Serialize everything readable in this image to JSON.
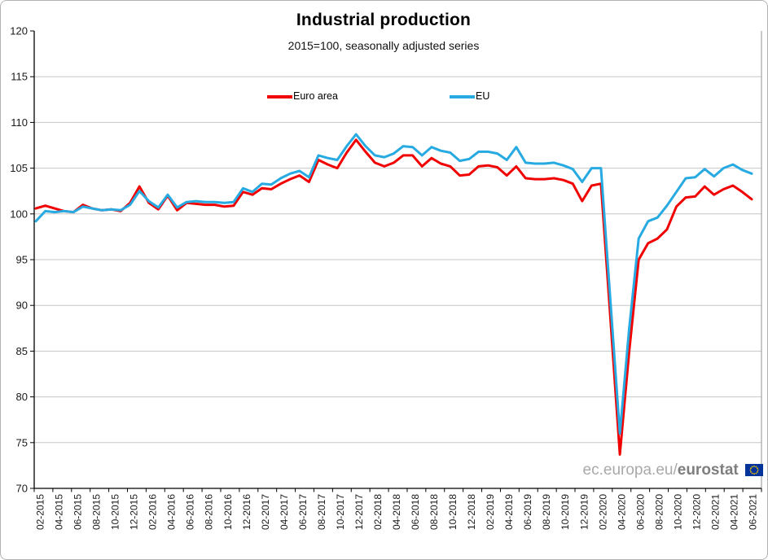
{
  "header": {
    "title": "Industrial production",
    "subtitle": "2015=100, seasonally adjusted series"
  },
  "legend": {
    "items": [
      {
        "key": "euro-area",
        "label": "Euro area",
        "color": "#f10000"
      },
      {
        "key": "eu",
        "label": "EU",
        "color": "#27aae1"
      }
    ]
  },
  "watermark": {
    "prefix": "ec.europa.eu/",
    "bold": "eurostat"
  },
  "colors": {
    "euro_area": "#f10000",
    "eu": "#27aae1",
    "gridline": "#c6c6c6",
    "plot_border": "#909090",
    "axis": "#000000",
    "tick_text": "#1a1a1a",
    "eu_flag_blue": "#003399",
    "eu_flag_stars": "#ffcc00"
  },
  "chart_data": {
    "type": "line",
    "title": "Industrial production",
    "subtitle": "2015=100, seasonally adjusted series",
    "xlabel": "",
    "ylabel": "",
    "ylim": [
      70,
      120
    ],
    "grid": "horizontal",
    "legend_position": "top",
    "y_ticks": [
      70,
      75,
      80,
      85,
      90,
      95,
      100,
      105,
      110,
      115,
      120
    ],
    "x_tick_labels": [
      "02-2015",
      "04-2015",
      "06-2015",
      "08-2015",
      "10-2015",
      "12-2015",
      "02-2016",
      "04-2016",
      "06-2016",
      "08-2016",
      "10-2016",
      "12-2016",
      "02-2017",
      "04-2017",
      "06-2017",
      "08-2017",
      "10-2017",
      "12-2017",
      "02-2018",
      "04-2018",
      "06-2018",
      "08-2018",
      "10-2018",
      "12-2018",
      "02-2019",
      "04-2019",
      "06-2019",
      "08-2019",
      "10-2019",
      "12-2019",
      "02-2020",
      "04-2020",
      "06-2020",
      "08-2020",
      "10-2020",
      "12-2020",
      "02-2021",
      "04-2021",
      "06-2021"
    ],
    "x": [
      "02-2015",
      "03-2015",
      "04-2015",
      "05-2015",
      "06-2015",
      "07-2015",
      "08-2015",
      "09-2015",
      "10-2015",
      "11-2015",
      "12-2015",
      "01-2016",
      "02-2016",
      "03-2016",
      "04-2016",
      "05-2016",
      "06-2016",
      "07-2016",
      "08-2016",
      "09-2016",
      "10-2016",
      "11-2016",
      "12-2016",
      "01-2017",
      "02-2017",
      "03-2017",
      "04-2017",
      "05-2017",
      "06-2017",
      "07-2017",
      "08-2017",
      "09-2017",
      "10-2017",
      "11-2017",
      "12-2017",
      "01-2018",
      "02-2018",
      "03-2018",
      "04-2018",
      "05-2018",
      "06-2018",
      "07-2018",
      "08-2018",
      "09-2018",
      "10-2018",
      "11-2018",
      "12-2018",
      "01-2019",
      "02-2019",
      "03-2019",
      "04-2019",
      "05-2019",
      "06-2019",
      "07-2019",
      "08-2019",
      "09-2019",
      "10-2019",
      "11-2019",
      "12-2019",
      "01-2020",
      "02-2020",
      "03-2020",
      "04-2020",
      "05-2020",
      "06-2020",
      "07-2020",
      "08-2020",
      "09-2020",
      "10-2020",
      "11-2020",
      "12-2020",
      "01-2021",
      "02-2021",
      "03-2021",
      "04-2021",
      "05-2021",
      "06-2021"
    ],
    "series": [
      {
        "key": "euro-area",
        "name": "Euro area",
        "color": "#f10000",
        "values": [
          100.6,
          100.9,
          100.6,
          100.3,
          100.2,
          101.0,
          100.6,
          100.4,
          100.5,
          100.3,
          101.2,
          103.0,
          101.2,
          100.5,
          102.0,
          100.4,
          101.2,
          101.1,
          101.0,
          101.0,
          100.8,
          100.9,
          102.4,
          102.1,
          102.8,
          102.7,
          103.3,
          103.8,
          104.2,
          103.5,
          105.9,
          105.4,
          105.0,
          106.7,
          108.1,
          106.8,
          105.6,
          105.2,
          105.6,
          106.4,
          106.4,
          105.2,
          106.1,
          105.5,
          105.2,
          104.2,
          104.3,
          105.2,
          105.3,
          105.1,
          104.2,
          105.2,
          103.9,
          103.8,
          103.8,
          103.9,
          103.7,
          103.3,
          101.4,
          103.1,
          103.3,
          88.6,
          73.7,
          85.0,
          95.0,
          96.8,
          97.3,
          98.3,
          100.8,
          101.8,
          101.9,
          103.0,
          102.1,
          102.7,
          103.1,
          102.4,
          101.6
        ]
      },
      {
        "key": "eu",
        "name": "EU",
        "color": "#27aae1",
        "values": [
          99.2,
          100.3,
          100.2,
          100.3,
          100.2,
          100.8,
          100.6,
          100.4,
          100.5,
          100.4,
          101.0,
          102.5,
          101.4,
          100.7,
          102.1,
          100.7,
          101.3,
          101.4,
          101.3,
          101.3,
          101.2,
          101.3,
          102.8,
          102.4,
          103.3,
          103.2,
          103.9,
          104.4,
          104.7,
          104.0,
          106.4,
          106.1,
          105.9,
          107.4,
          108.7,
          107.4,
          106.4,
          106.2,
          106.6,
          107.4,
          107.3,
          106.4,
          107.3,
          106.9,
          106.7,
          105.8,
          106.0,
          106.8,
          106.8,
          106.6,
          105.9,
          107.3,
          105.6,
          105.5,
          105.5,
          105.6,
          105.3,
          104.9,
          103.5,
          105.0,
          105.0,
          90.5,
          76.0,
          87.5,
          97.3,
          99.2,
          99.6,
          100.9,
          102.4,
          103.9,
          104.0,
          104.9,
          104.1,
          105.0,
          105.4,
          104.8,
          104.4
        ]
      }
    ]
  }
}
